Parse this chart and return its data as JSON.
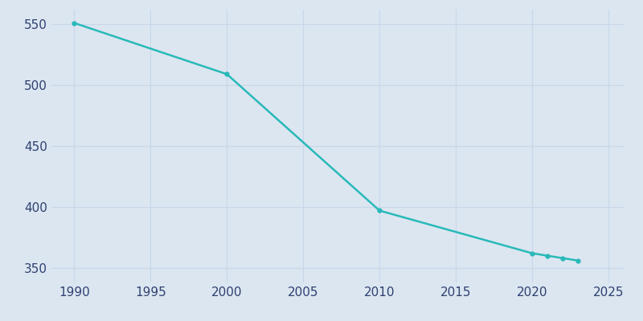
{
  "years": [
    1990,
    2000,
    2010,
    2020,
    2021,
    2022,
    2023
  ],
  "population": [
    551,
    509,
    397,
    362,
    360,
    358,
    356
  ],
  "line_color": "#29b9b9",
  "marker_color": "#29b9b9",
  "background_color": "#dce6f1",
  "grid_color": "#c8d8ea",
  "xlim": [
    1988.5,
    2026
  ],
  "ylim": [
    338,
    562
  ],
  "yticks": [
    350,
    400,
    450,
    500,
    550
  ],
  "xticks": [
    1990,
    1995,
    2000,
    2005,
    2010,
    2015,
    2020,
    2025
  ],
  "tick_label_color": "#2e4070",
  "tick_fontsize": 11,
  "linewidth": 1.8,
  "markersize": 3.5
}
